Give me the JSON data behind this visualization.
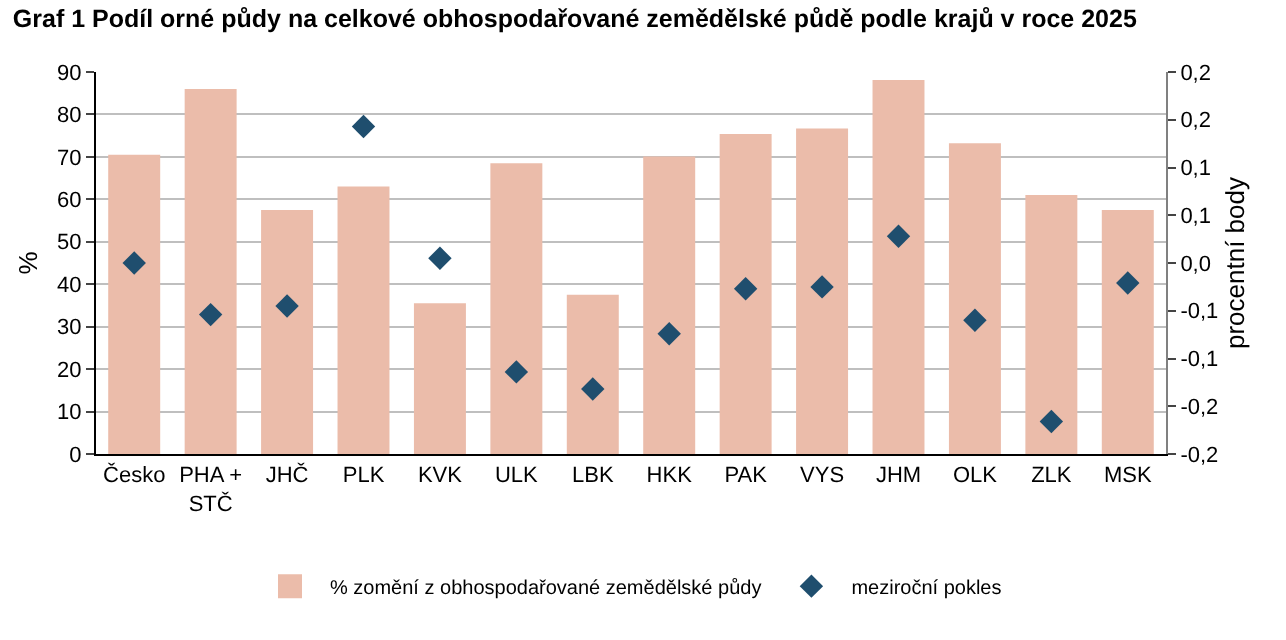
{
  "chart_data": {
    "type": "bar",
    "title": "Graf 1 Podíl orné půdy na celkové obhospodařované zemědělské půdě podle krajů v roce 2025",
    "ylabel": "%",
    "y2label": "procentní body",
    "categories": [
      "Česko",
      "PHA +\nSTČ",
      "JHČ",
      "PLK",
      "KVK",
      "ULK",
      "LBK",
      "HKK",
      "PAK",
      "VYS",
      "JHM",
      "OLK",
      "ZLK",
      "MSK"
    ],
    "series": [
      {
        "name": "% zomění z obhospodařované zemědělské půdy",
        "color": "#ebbcaa",
        "values": [
          70.5,
          86.0,
          57.5,
          63.0,
          35.5,
          68.5,
          37.5,
          70.1,
          75.4,
          76.7,
          88.1,
          73.2,
          61.0,
          57.5
        ]
      },
      {
        "name": "meziroční pokles",
        "type": "scatter",
        "axis": "y2",
        "color": "#1f4e6e",
        "marker": "diamond",
        "values": [
          0.0,
          -0.054,
          -0.045,
          0.143,
          0.005,
          -0.114,
          -0.132,
          -0.074,
          -0.027,
          -0.025,
          0.028,
          -0.06,
          -0.166,
          -0.021
        ]
      }
    ],
    "ylim": [
      0,
      90
    ],
    "yticks": [
      0,
      10,
      20,
      30,
      40,
      50,
      60,
      70,
      80,
      90
    ],
    "y2lim": [
      -0.2,
      0.2
    ],
    "y2ticks": [
      {
        "value": -0.2,
        "label": "-0,2"
      },
      {
        "value": -0.15,
        "label": "-0,2"
      },
      {
        "value": -0.1,
        "label": "-0,1"
      },
      {
        "value": -0.05,
        "label": "-0,1"
      },
      {
        "value": 0.0,
        "label": "0,0"
      },
      {
        "value": 0.05,
        "label": "0,1"
      },
      {
        "value": 0.1,
        "label": "0,1"
      },
      {
        "value": 0.15,
        "label": "0,2"
      },
      {
        "value": 0.2,
        "label": "0,2"
      }
    ],
    "grid": "y",
    "legend": "bottom"
  }
}
